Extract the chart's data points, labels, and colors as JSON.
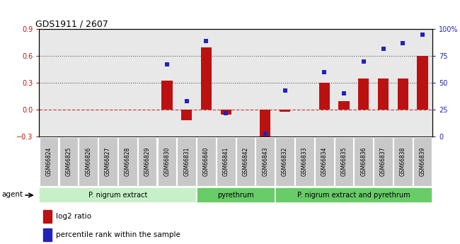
{
  "title": "GDS1911 / 2607",
  "samples": [
    "GSM66824",
    "GSM66825",
    "GSM66826",
    "GSM66827",
    "GSM66828",
    "GSM66829",
    "GSM66830",
    "GSM66831",
    "GSM66840",
    "GSM66841",
    "GSM66842",
    "GSM66843",
    "GSM66832",
    "GSM66833",
    "GSM66834",
    "GSM66835",
    "GSM66836",
    "GSM66837",
    "GSM66838",
    "GSM66839"
  ],
  "log2_ratio": [
    0,
    0,
    0,
    0,
    0,
    0,
    0.33,
    -0.12,
    0.7,
    -0.05,
    0,
    -0.32,
    -0.02,
    0,
    0.3,
    0.1,
    0.35,
    0.35,
    0.35,
    0.6
  ],
  "pct_rank": [
    null,
    null,
    null,
    null,
    null,
    null,
    0.67,
    0.33,
    0.89,
    0.22,
    null,
    0.03,
    0.43,
    null,
    0.6,
    0.4,
    0.7,
    0.82,
    0.87,
    0.95
  ],
  "groups": [
    {
      "label": "P. nigrum extract",
      "start": 0,
      "end": 7
    },
    {
      "label": "pyrethrum",
      "start": 8,
      "end": 11
    },
    {
      "label": "P. nigrum extract and pyrethrum",
      "start": 12,
      "end": 19
    }
  ],
  "group_colors": [
    "#c8f0c8",
    "#68cc68",
    "#68cc68"
  ],
  "ylim_left": [
    -0.3,
    0.9
  ],
  "ylim_right": [
    0,
    100
  ],
  "yticks_left": [
    -0.3,
    0,
    0.3,
    0.6,
    0.9
  ],
  "yticks_right": [
    0,
    25,
    50,
    75,
    100
  ],
  "bar_color": "#bb1111",
  "dot_color": "#2222bb",
  "zero_line_color": "#cc4444",
  "grid_color": "#555555",
  "plot_bg": "#e8e8e8",
  "tick_bg": "#c8c8c8",
  "legend_bar": "log2 ratio",
  "legend_dot": "percentile rank within the sample"
}
